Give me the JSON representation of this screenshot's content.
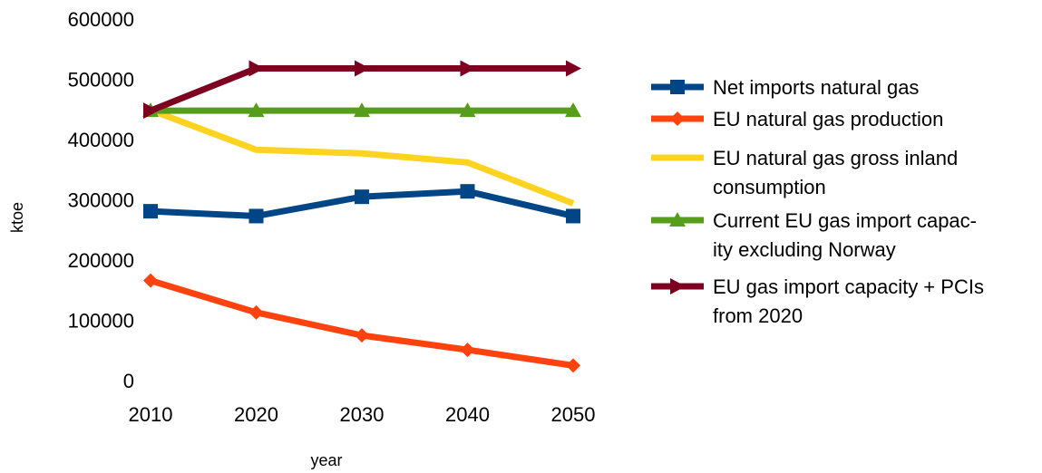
{
  "chart_data": {
    "type": "line",
    "x": [
      2010,
      2020,
      2030,
      2040,
      2050
    ],
    "xlabel": "year",
    "ylabel": "ktoe",
    "ylim": [
      0,
      600000
    ],
    "yticks": [
      0,
      100000,
      200000,
      300000,
      400000,
      500000,
      600000
    ],
    "grid": false,
    "legend_position": "right",
    "series": [
      {
        "name": "Net imports natural gas",
        "legend_lines": [
          "Net imports natural gas"
        ],
        "values": [
          281000,
          273000,
          305000,
          314000,
          273000
        ],
        "color": "#004586",
        "marker": "square"
      },
      {
        "name": "EU natural gas production",
        "legend_lines": [
          "EU natural gas production"
        ],
        "values": [
          166000,
          113000,
          75000,
          51000,
          25000
        ],
        "color": "#ff420e",
        "marker": "diamond"
      },
      {
        "name": "EU natural gas gross inland consumption",
        "legend_lines": [
          "EU natural gas gross inland",
          "consumption"
        ],
        "values": [
          449000,
          383000,
          377000,
          362000,
          294000
        ],
        "color": "#ffd320",
        "marker": "none"
      },
      {
        "name": "Current EU gas import capacity excluding Norway",
        "legend_lines": [
          "Current EU gas import capac-",
          "ity excluding Norway"
        ],
        "values": [
          448000,
          448000,
          448000,
          448000,
          448000
        ],
        "color": "#579d1c",
        "marker": "triangle"
      },
      {
        "name": "EU gas import capacity + PCIs from 2020",
        "legend_lines": [
          "EU gas import capacity + PCIs",
          "from 2020"
        ],
        "values": [
          448000,
          518000,
          518000,
          518000,
          518000
        ],
        "color": "#7e0021",
        "marker": "arrow-right"
      }
    ]
  }
}
